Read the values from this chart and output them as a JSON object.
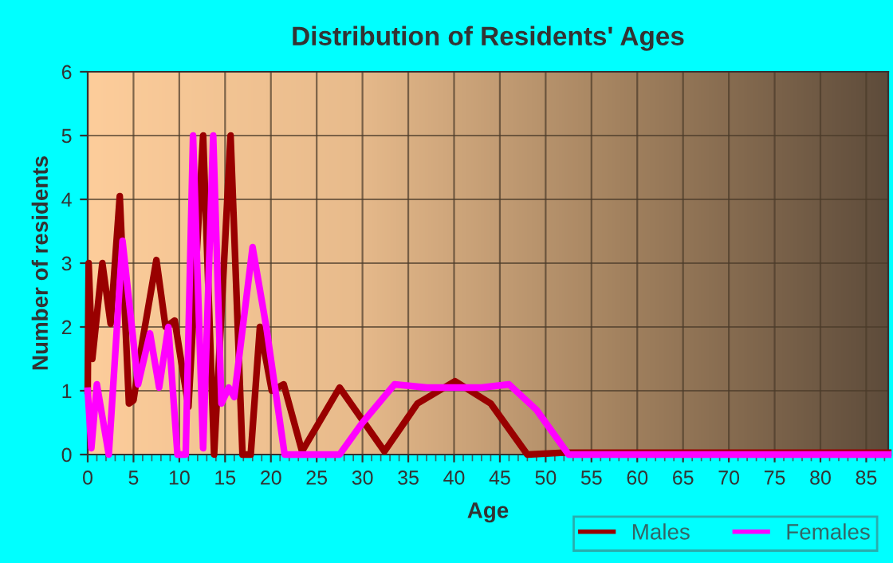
{
  "chart_data": {
    "type": "line",
    "title": "Distribution of Residents' Ages",
    "xlabel": "Age",
    "ylabel": "Number of residents",
    "xlim": [
      0,
      87.4
    ],
    "xticks": [
      0,
      5,
      10,
      15,
      20,
      25,
      30,
      35,
      40,
      45,
      50,
      55,
      60,
      65,
      70,
      75,
      80,
      85
    ],
    "ylim": [
      0,
      6
    ],
    "yticks": [
      0,
      1,
      2,
      3,
      4,
      5,
      6
    ],
    "grid": true,
    "legend": "bottom right",
    "marker": "none",
    "line_style": "solid",
    "series": [
      {
        "name": "Males",
        "color": "#990000",
        "x": [
          0,
          0.1,
          0.5,
          1.6,
          2.5,
          3.5,
          4.5,
          5,
          6,
          7.5,
          8.5,
          9.5,
          11,
          12.6,
          13.8,
          15.6,
          16.9,
          17.8,
          18.8,
          20.1,
          21.4,
          23.4,
          27.5,
          32.4,
          36,
          40.1,
          44,
          48,
          52,
          60,
          70,
          80,
          87.4
        ],
        "values": [
          1,
          3,
          1.5,
          3,
          2.05,
          4.05,
          0.8,
          0.85,
          1.8,
          3.05,
          2,
          2.1,
          0.75,
          5,
          0,
          5,
          0,
          0,
          2,
          1,
          1.1,
          0.05,
          1.05,
          0.05,
          0.8,
          1.15,
          0.8,
          0,
          0.03,
          0.03,
          0.03,
          0.03,
          0.03
        ]
      },
      {
        "name": "Females",
        "color": "#ff00ff",
        "x": [
          0,
          0.4,
          1,
          2.3,
          3.8,
          5.5,
          6.8,
          7.8,
          8.8,
          9.8,
          10.7,
          11.5,
          12.6,
          13.7,
          14.6,
          15.4,
          16,
          18,
          19.5,
          21.5,
          27.5,
          30,
          33.5,
          37,
          40,
          43,
          46,
          49,
          52.5,
          60,
          70,
          80,
          87.4
        ],
        "values": [
          1,
          0.1,
          1.1,
          0,
          3.35,
          1.1,
          1.9,
          1.05,
          2,
          0,
          0,
          5,
          0.1,
          5,
          0.8,
          1.05,
          0.9,
          3.25,
          2,
          0,
          0,
          0.5,
          1.1,
          1.05,
          1.05,
          1.05,
          1.1,
          0.7,
          0,
          0,
          0,
          0,
          0
        ]
      }
    ]
  }
}
